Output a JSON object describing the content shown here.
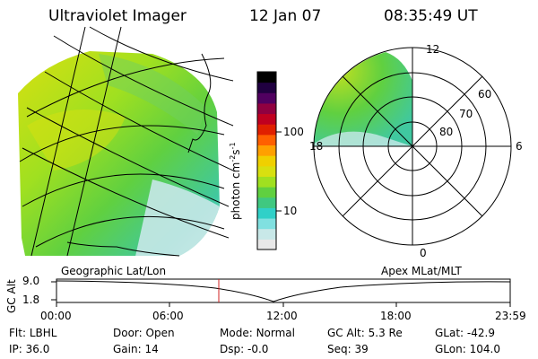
{
  "header": {
    "instrument": "Ultraviolet Imager",
    "date": "12 Jan 07",
    "time": "08:35:49 UT"
  },
  "colorbar": {
    "unit": "photon cm",
    "unit_exp1": "-2",
    "unit_s": "s",
    "unit_exp2": "-1",
    "ticks": [
      {
        "label": "100",
        "value": 100
      },
      {
        "label": "10",
        "value": 10
      }
    ],
    "colors": [
      "#e8e8e8",
      "#c8e8e8",
      "#80e0e0",
      "#30d0c8",
      "#40c880",
      "#60d040",
      "#a0e020",
      "#d8e010",
      "#f0d000",
      "#ffa000",
      "#ff6000",
      "#e02000",
      "#c00020",
      "#900040",
      "#500060",
      "#200040",
      "#000000"
    ]
  },
  "polar": {
    "lat_labels": [
      "60",
      "70",
      "80"
    ],
    "mlt_labels": {
      "top": "12",
      "left": "18",
      "right": "6",
      "bottom": "0"
    }
  },
  "timeline": {
    "left_title": "Geographic Lat/Lon",
    "right_title": "Apex MLat/MLT",
    "axis_label": "GC Alt",
    "y_ticks": [
      "9.0",
      "1.8"
    ],
    "x_ticks": [
      "00:00",
      "06:00",
      "12:00",
      "18:00",
      "23:59"
    ],
    "marker_time": "08:35:49"
  },
  "info": {
    "row1": [
      {
        "k": "Flt:",
        "v": "LBHL"
      },
      {
        "k": "Door:",
        "v": "Open"
      },
      {
        "k": "Mode:",
        "v": "Normal"
      },
      {
        "k": "GC Alt:",
        "v": "5.3 Re"
      },
      {
        "k": "GLat:",
        "v": "-42.9"
      }
    ],
    "row2": [
      {
        "k": "IP:",
        "v": "36.0"
      },
      {
        "k": "Gain:",
        "v": "14"
      },
      {
        "k": "Dsp:",
        "v": "-0.0"
      },
      {
        "k": "Seq:",
        "v": "39"
      },
      {
        "k": "GLon:",
        "v": "104.0"
      }
    ]
  }
}
